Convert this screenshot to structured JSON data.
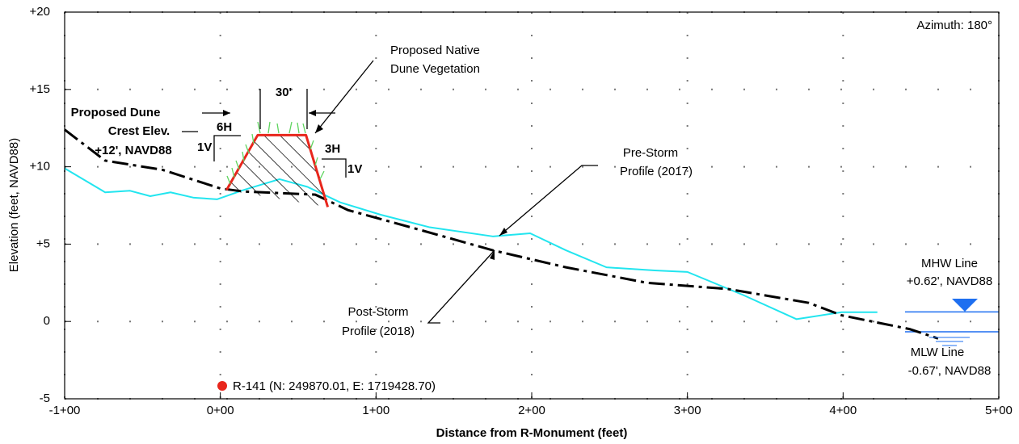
{
  "chart_data": {
    "type": "line",
    "xlabel": "Distance from R-Monument (feet)",
    "ylabel": "Elevation (feet, NAVD88)",
    "xlim": [
      -100,
      500
    ],
    "ylim": [
      -5,
      20
    ],
    "xticks": [
      {
        "value": -100,
        "label": "-1+00"
      },
      {
        "value": 0,
        "label": "0+00"
      },
      {
        "value": 100,
        "label": "1+00"
      },
      {
        "value": 200,
        "label": "2+00"
      },
      {
        "value": 300,
        "label": "3+00"
      },
      {
        "value": 400,
        "label": "4+00"
      },
      {
        "value": 500,
        "label": "5+00"
      }
    ],
    "yticks": [
      {
        "value": -5,
        "label": "-5"
      },
      {
        "value": 0,
        "label": "0"
      },
      {
        "value": 5,
        "label": "+5"
      },
      {
        "value": 10,
        "label": "+10"
      },
      {
        "value": 15,
        "label": "+15"
      },
      {
        "value": 20,
        "label": "+20"
      }
    ],
    "grid": true,
    "series": [
      {
        "name": "Pre-Storm Profile (2017)",
        "color": "#22e5ef",
        "x": [
          -100,
          -74,
          -58,
          -45,
          -32,
          -17,
          -2,
          15,
          38,
          56,
          77,
          103,
          134,
          175,
          199,
          222,
          248,
          279,
          300,
          336,
          370,
          399,
          422
        ],
        "values": [
          9.9,
          8.35,
          8.45,
          8.1,
          8.35,
          8.0,
          7.9,
          8.5,
          9.2,
          8.7,
          7.7,
          6.9,
          6.1,
          5.5,
          5.7,
          4.6,
          3.5,
          3.3,
          3.2,
          1.7,
          0.15,
          0.6,
          0.6
        ]
      },
      {
        "name": "Post-Storm Profile (2018)",
        "color": "#000000",
        "x": [
          -100,
          -74,
          -37,
          0,
          15,
          61,
          82,
          129,
          175,
          222,
          274,
          326,
          378,
          399,
          443,
          461
        ],
        "values": [
          12.4,
          10.4,
          9.8,
          8.6,
          8.4,
          8.2,
          7.2,
          5.9,
          4.6,
          3.5,
          2.5,
          2.1,
          1.2,
          0.4,
          -0.5,
          -1.1
        ]
      },
      {
        "name": "Proposed Dune",
        "color": "#e8261c",
        "x": [
          4,
          24,
          55,
          69
        ],
        "values": [
          8.5,
          12.05,
          12.05,
          7.4
        ]
      }
    ],
    "annotations": {
      "azimuth": "Azimuth: 180°",
      "veg1": "Proposed Native",
      "veg2": "Dune Vegetation",
      "pre1": "Pre-Storm",
      "pre2": "Profile (2017)",
      "post1": "Post-Storm",
      "post2": "Profile (2018)",
      "crest1": "Proposed Dune",
      "crest2": "Crest Elev.",
      "crest3": "+12', NAVD88",
      "width": "30'",
      "h1": "6H",
      "v1": "1V",
      "h2": "3H",
      "v2": "1V",
      "monument": "R-141 (N: 249870.01, E: 1719428.70)"
    },
    "mhw": {
      "value": 0.62,
      "line1": "MHW Line",
      "line2": "+0.62', NAVD88"
    },
    "mlw": {
      "value": -0.67,
      "line1": "MLW Line",
      "line2": "-0.67', NAVD88"
    }
  }
}
